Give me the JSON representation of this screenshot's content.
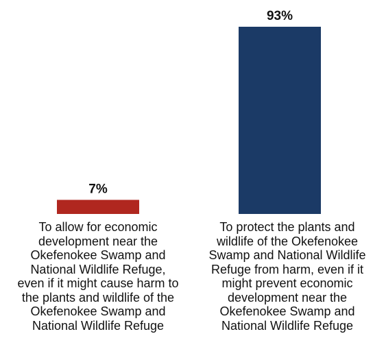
{
  "chart_data": {
    "type": "bar",
    "categories": [
      "To allow for economic development near the Okefenokee Swamp and National Wildlife Refuge, even if it might cause harm to the plants and wildlife of the Okefenokee Swamp and National Wildlife Refuge",
      "To protect the plants and wildlife of the Okefenokee Swamp and National Wildlife Refuge from harm, even if it might prevent economic development near the Okefenokee Swamp and National Wildlife Refuge"
    ],
    "values": [
      7,
      93
    ],
    "value_labels": [
      "7%",
      "93%"
    ],
    "colors": [
      "#b0271f",
      "#1b3a66"
    ],
    "ylim": [
      0,
      93
    ],
    "grid": false,
    "legend": "none"
  }
}
